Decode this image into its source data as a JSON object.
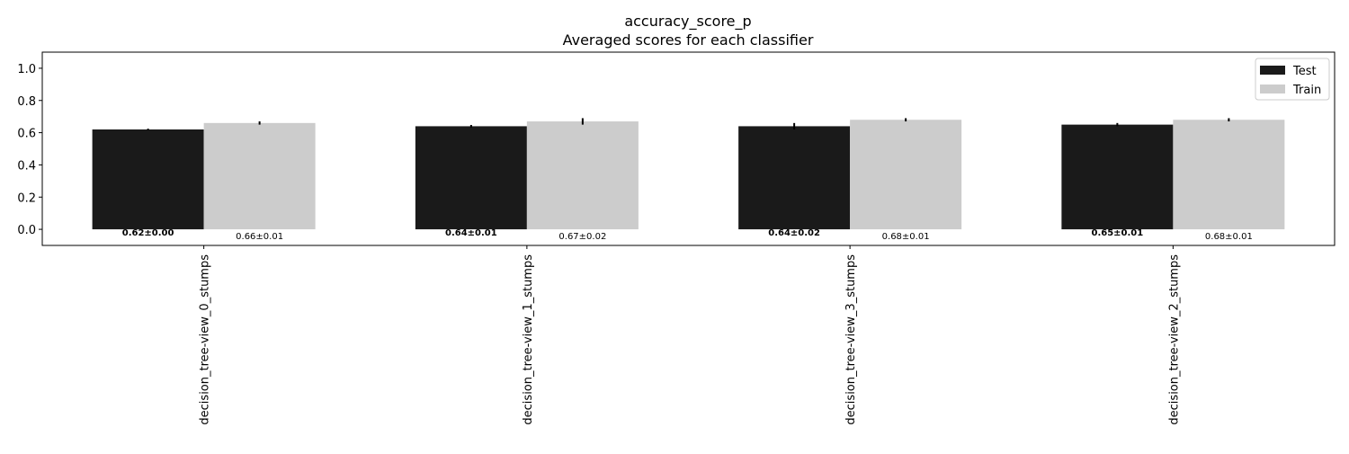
{
  "chart_data": {
    "type": "bar",
    "title": "accuracy_score_p",
    "subtitle": "Averaged scores for each classifier",
    "categories": [
      "decision_tree-view_0_stumps",
      "decision_tree-view_1_stumps",
      "decision_tree-view_3_stumps",
      "decision_tree-view_2_stumps"
    ],
    "series": [
      {
        "name": "Test",
        "color": "#1a1a1a",
        "values": [
          0.62,
          0.64,
          0.64,
          0.65
        ],
        "errors": [
          0.005,
          0.008,
          0.02,
          0.01
        ],
        "labels": [
          "0.62±0.00",
          "0.64±0.01",
          "0.64±0.02",
          "0.65±0.01"
        ]
      },
      {
        "name": "Train",
        "color": "#cccccc",
        "values": [
          0.66,
          0.67,
          0.68,
          0.68
        ],
        "errors": [
          0.01,
          0.02,
          0.01,
          0.01
        ],
        "labels": [
          "0.66±0.01",
          "0.67±0.02",
          "0.68±0.01",
          "0.68±0.01"
        ]
      }
    ],
    "ylim": [
      -0.1,
      1.1
    ],
    "yticks": [
      "0.0",
      "0.2",
      "0.4",
      "0.6",
      "0.8",
      "1.0"
    ],
    "xlabel": "",
    "ylabel": "",
    "grid": false,
    "legend_position": "top-right"
  }
}
